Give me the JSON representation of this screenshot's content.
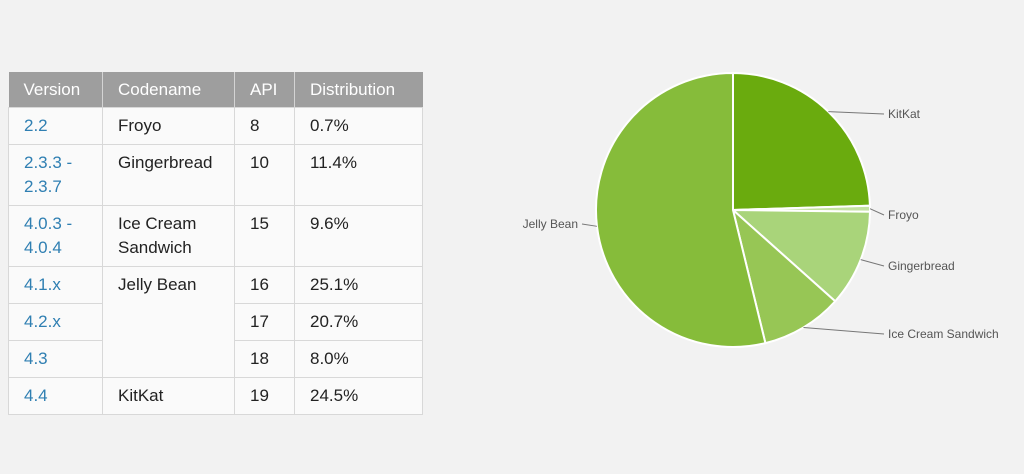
{
  "table": {
    "headers": [
      "Version",
      "Codename",
      "API",
      "Distribution"
    ],
    "rows": [
      {
        "version": [
          "2.2"
        ],
        "codename": "Froyo",
        "api": "8",
        "distribution": "0.7%"
      },
      {
        "version": [
          "2.3.3 -",
          "2.3.7"
        ],
        "codename": "Gingerbread",
        "api": "10",
        "distribution": "11.4%"
      },
      {
        "version": [
          "4.0.3 -",
          "4.0.4"
        ],
        "codename": "Ice Cream Sandwich",
        "api": "15",
        "distribution": "9.6%"
      },
      {
        "version": [
          "4.1.x"
        ],
        "codename": "Jelly Bean",
        "api": "16",
        "distribution": "25.1%"
      },
      {
        "version": [
          "4.2.x"
        ],
        "codename": "",
        "api": "17",
        "distribution": "20.7%"
      },
      {
        "version": [
          "4.3"
        ],
        "codename": "",
        "api": "18",
        "distribution": "8.0%"
      },
      {
        "version": [
          "4.4"
        ],
        "codename": "KitKat",
        "api": "19",
        "distribution": "24.5%"
      }
    ]
  },
  "chart_data": {
    "type": "pie",
    "slices": [
      {
        "label": "KitKat",
        "value": 24.5,
        "color": "#6aab0e"
      },
      {
        "label": "Froyo",
        "value": 0.7,
        "color": "#c4e2a0"
      },
      {
        "label": "Gingerbread",
        "value": 11.4,
        "color": "#a9d47a"
      },
      {
        "label": "Ice Cream Sandwich",
        "value": 9.6,
        "color": "#97c655"
      },
      {
        "label": "Jelly Bean",
        "value": 53.8,
        "color": "#86bc3a"
      }
    ]
  }
}
